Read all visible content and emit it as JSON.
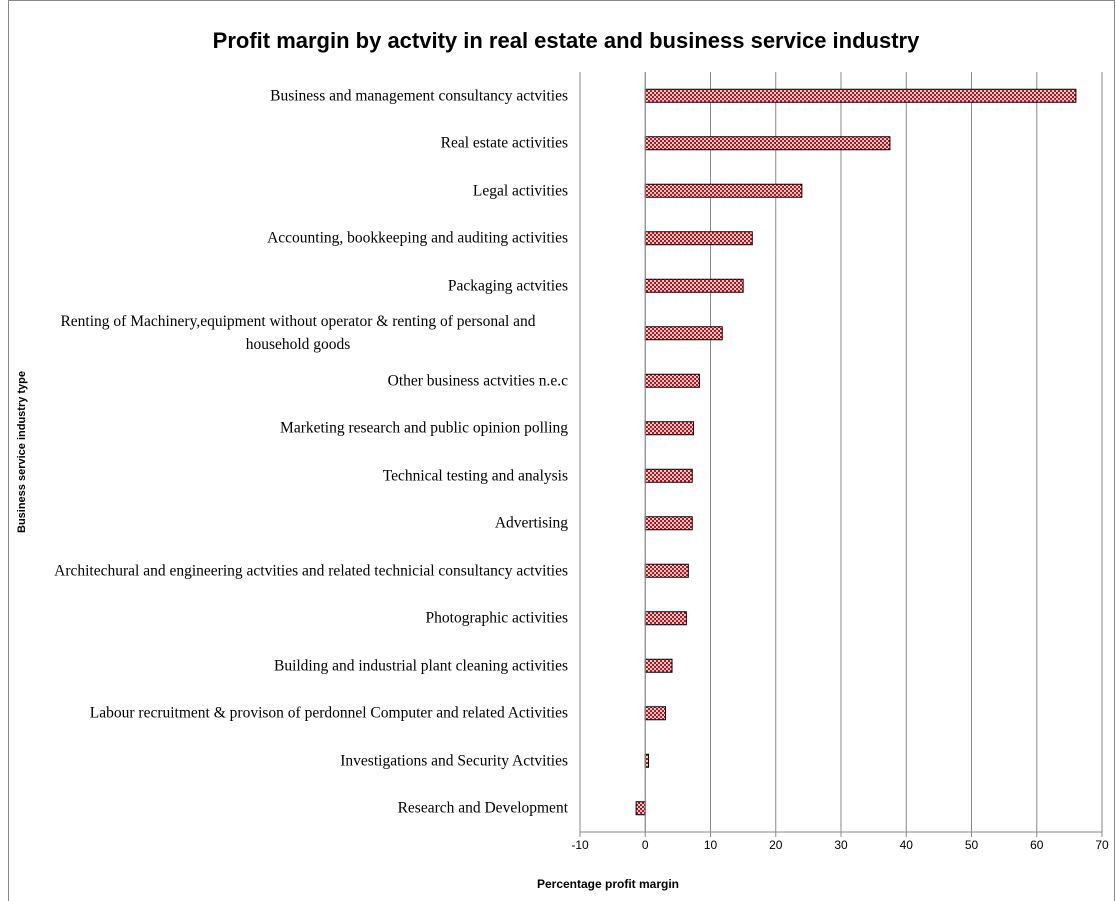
{
  "chart_data": {
    "type": "bar",
    "orientation": "horizontal",
    "title": "Profit margin by actvity in real estate and business service industry",
    "x_label": "Percentage profit margin",
    "y_label": "Business service industry type",
    "categories": [
      "Business and management consultancy actvities",
      "Real estate activities",
      "Legal activities",
      "Accounting, bookkeeping and auditing activities",
      "Packaging actvities",
      "Renting of Machinery,equipment without operator & renting of personal and household goods",
      "Other business actvities n.e.c",
      "Marketing research and public opinion polling",
      "Technical testing and analysis",
      "Advertising",
      "Architechural and engineering actvities and related technicial consultancy actvities",
      "Photographic activities",
      "Building and industrial plant cleaning activities",
      "Labour recruitment & provison of perdonnel Computer and related Activities",
      "Investigations and Security Actvities",
      "Research and Development"
    ],
    "values": [
      66,
      37.5,
      24,
      16.4,
      15,
      11.8,
      8.3,
      7.4,
      7.2,
      7.2,
      6.6,
      6.3,
      4.1,
      3.1,
      0.5,
      -1.4
    ],
    "color": "#c0101a",
    "xlim": [
      -10,
      70
    ],
    "xticks": [
      -10,
      0,
      10,
      20,
      30,
      40,
      50,
      60,
      70
    ],
    "grid": true
  }
}
